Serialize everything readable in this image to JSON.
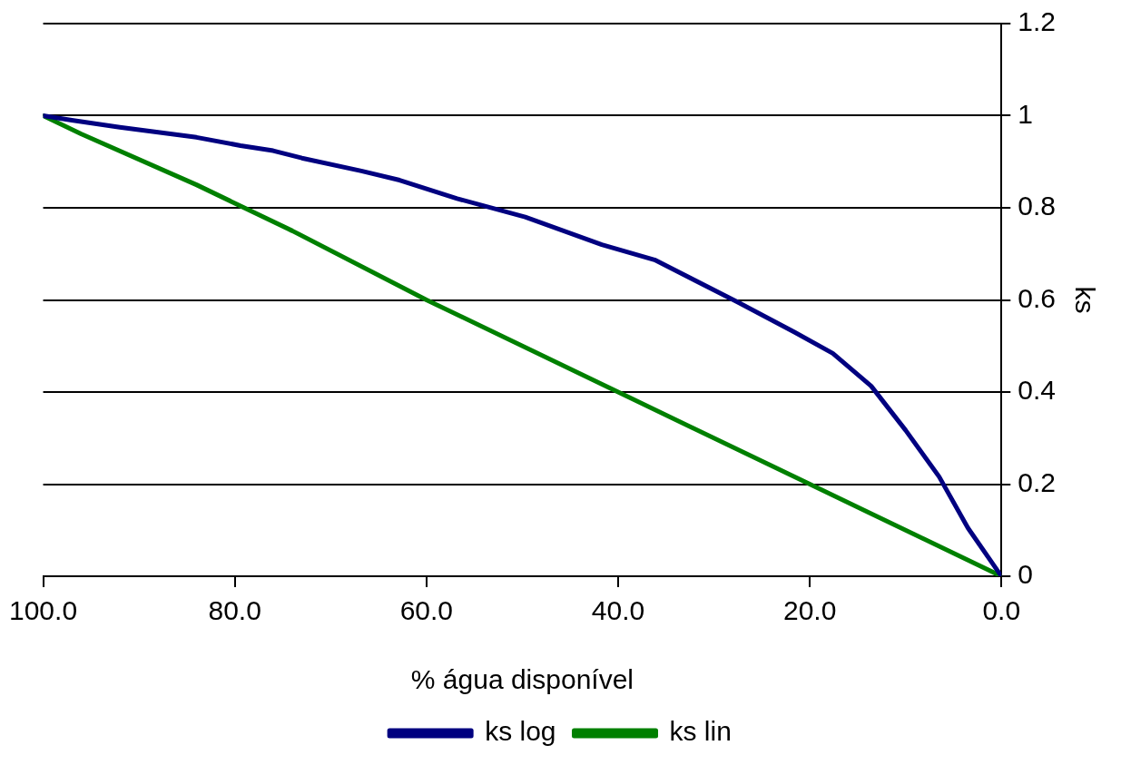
{
  "chart_data": {
    "type": "line",
    "xlabel": "% água disponível",
    "ylabel": "ks",
    "xlim": [
      100,
      0
    ],
    "xticks": [
      {
        "value": 100,
        "label": "100.0"
      },
      {
        "value": 80,
        "label": "80.0"
      },
      {
        "value": 60,
        "label": "60.0"
      },
      {
        "value": 40,
        "label": "40.0"
      },
      {
        "value": 20,
        "label": "20.0"
      },
      {
        "value": 0,
        "label": "0.0"
      }
    ],
    "ylim": [
      0,
      1.2
    ],
    "yticks": [
      0,
      0.2,
      0.4,
      0.6,
      0.8,
      1,
      1.2
    ],
    "grid": "y",
    "legend": "bottom",
    "marker": "none",
    "line_style": "solid",
    "series": [
      {
        "name": "ks log",
        "color": "#000080",
        "x": [
          100,
          97,
          92,
          84,
          79.4,
          76,
          73,
          66.8,
          62.8,
          56.8,
          49.7,
          41.7,
          36.2,
          27.6,
          21.6,
          17.6,
          13.6,
          10,
          6.5,
          3.5,
          0
        ],
        "values": [
          1,
          0.99,
          0.975,
          0.953,
          0.935,
          0.924,
          0.908,
          0.88,
          0.86,
          0.82,
          0.78,
          0.72,
          0.687,
          0.596,
          0.53,
          0.484,
          0.413,
          0.317,
          0.216,
          0.105,
          0
        ]
      },
      {
        "name": "ks lin",
        "color": "#008000",
        "x": [
          100,
          96,
          84,
          80,
          74,
          60,
          40,
          20,
          14,
          10,
          0
        ],
        "values": [
          1,
          0.96,
          0.85,
          0.81,
          0.75,
          0.6,
          0.4,
          0.2,
          0.14,
          0.1,
          0
        ]
      }
    ]
  }
}
